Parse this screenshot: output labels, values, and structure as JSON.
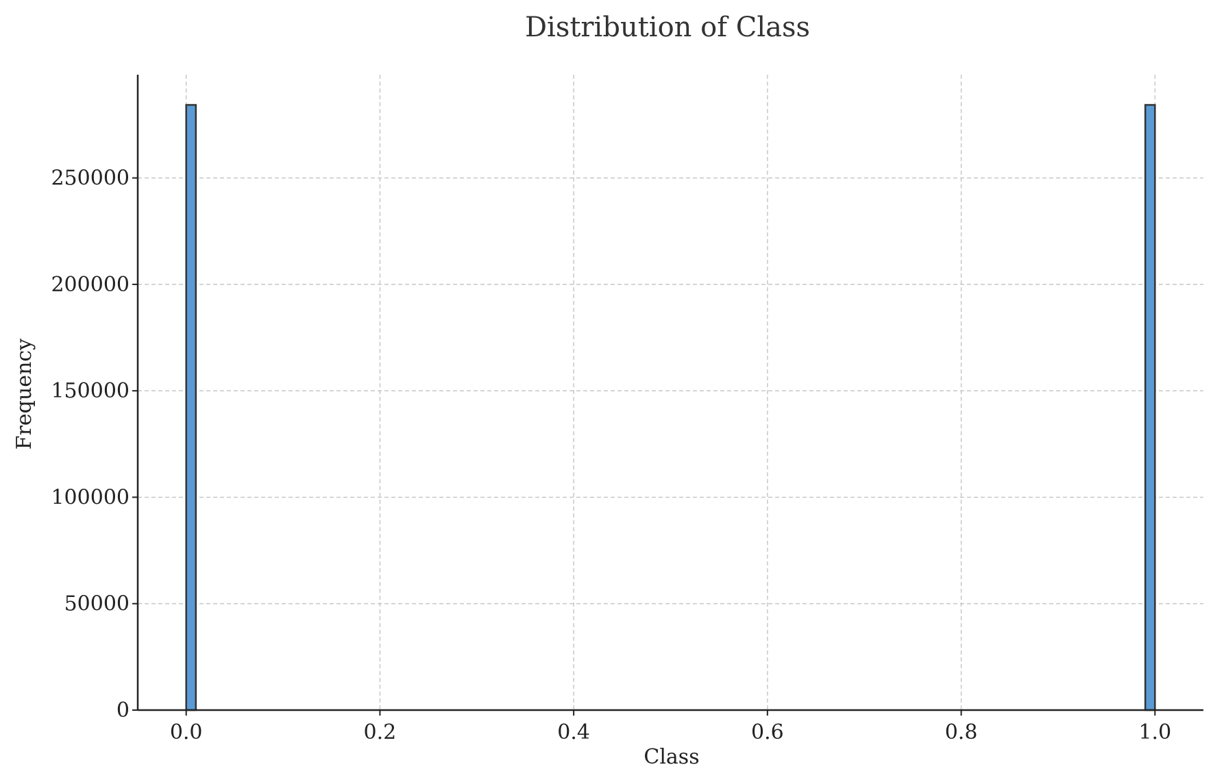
{
  "chart_data": {
    "type": "bar",
    "title": "Distribution of Class",
    "xlabel": "Class",
    "ylabel": "Frequency",
    "x": [
      0.0,
      1.0
    ],
    "values": [
      284315,
      284315
    ],
    "bar_color": "#5b9bd5",
    "edge_color": "#333333",
    "xlim": [
      -0.05,
      1.05
    ],
    "ylim": [
      0,
      298500
    ],
    "xticks": [
      0.0,
      0.2,
      0.4,
      0.6,
      0.8,
      1.0
    ],
    "xtick_labels": [
      "0.0",
      "0.2",
      "0.4",
      "0.6",
      "0.8",
      "1.0"
    ],
    "yticks": [
      0,
      50000,
      100000,
      150000,
      200000,
      250000
    ],
    "ytick_labels": [
      "0",
      "50000",
      "100000",
      "150000",
      "200000",
      "250000"
    ],
    "grid": true,
    "bin_width": 0.01
  }
}
